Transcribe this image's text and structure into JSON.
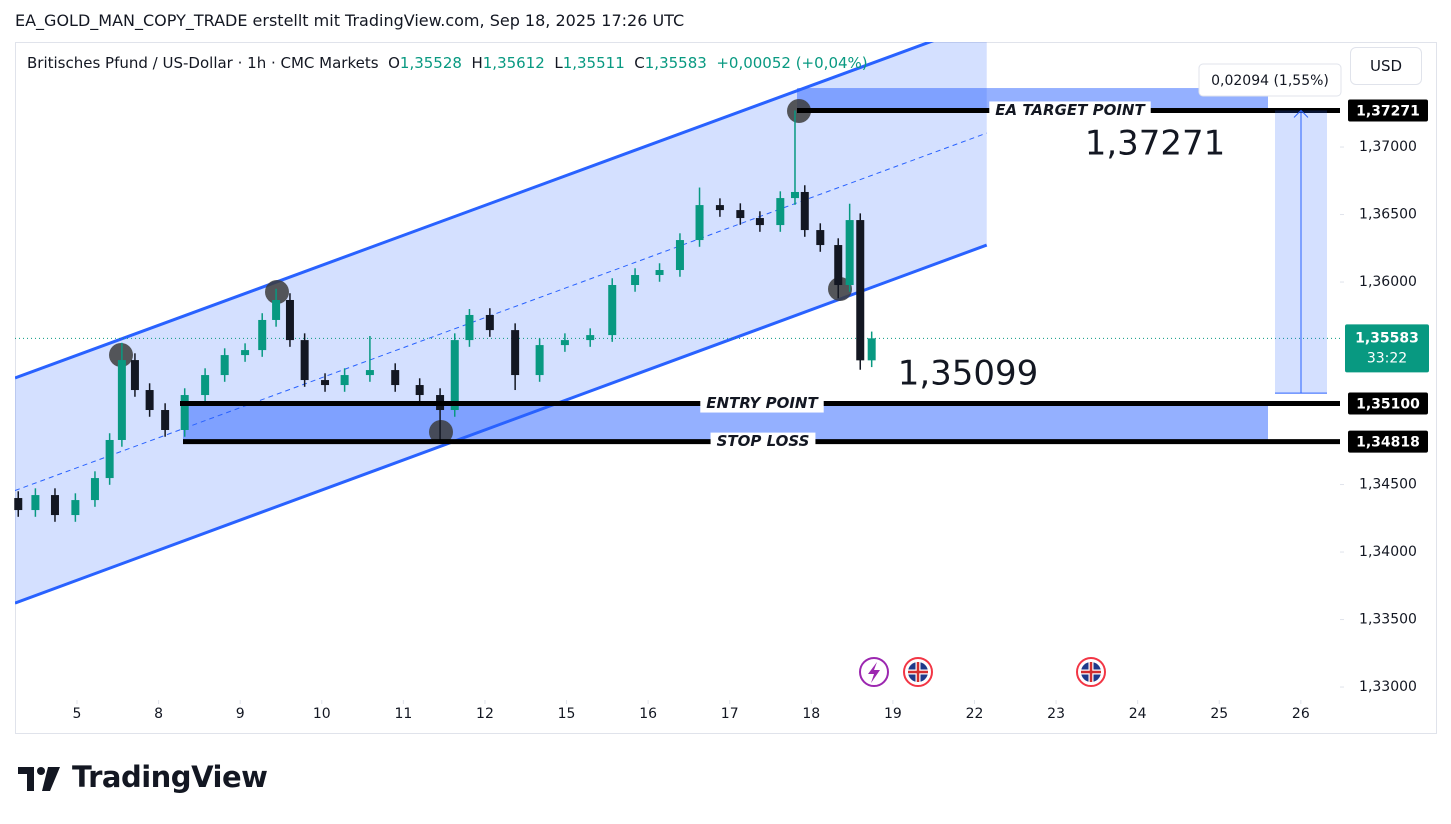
{
  "chart_data": {
    "type": "candlestick",
    "attribution": "EA_GOLD_MAN_COPY_TRADE erstellt mit TradingView.com, Sep 18, 2025 17:26 UTC",
    "legend": {
      "symbol": "Britisches Pfund / US-Dollar · 1h · CMC Markets",
      "o_label": "O",
      "o": "1,35528",
      "h_label": "H",
      "h": "1,35612",
      "l_label": "L",
      "l": "1,35511",
      "c_label": "C",
      "c": "1,35583",
      "change": "+0,00052 (+0,04%)"
    },
    "currency": "USD",
    "footer": "TradingView",
    "xlim": [
      -0.76,
      15.48
    ],
    "xticks": [
      {
        "value": 0,
        "label": "5"
      },
      {
        "value": 1,
        "label": "8"
      },
      {
        "value": 2,
        "label": "9"
      },
      {
        "value": 3,
        "label": "10"
      },
      {
        "value": 4,
        "label": "11"
      },
      {
        "value": 5,
        "label": "12"
      },
      {
        "value": 6,
        "label": "15"
      },
      {
        "value": 7,
        "label": "16"
      },
      {
        "value": 8,
        "label": "17"
      },
      {
        "value": 9,
        "label": "18"
      },
      {
        "value": 10,
        "label": "19"
      },
      {
        "value": 11,
        "label": "22"
      },
      {
        "value": 12,
        "label": "23"
      },
      {
        "value": 13,
        "label": "24"
      },
      {
        "value": 14,
        "label": "25"
      },
      {
        "value": 15,
        "label": "26"
      }
    ],
    "ylim": [
      1.32904,
      1.37778
    ],
    "yticks": [
      {
        "value": 1.37,
        "label": "1,37000"
      },
      {
        "value": 1.365,
        "label": "1,36500"
      },
      {
        "value": 1.36,
        "label": "1,36000"
      },
      {
        "value": 1.345,
        "label": "1,34500"
      },
      {
        "value": 1.34,
        "label": "1,34000"
      },
      {
        "value": 1.335,
        "label": "1,33500"
      },
      {
        "value": 1.33,
        "label": "1,33000"
      }
    ],
    "candles": {
      "up_color": "#089981",
      "down_color": "#131722",
      "x": [
        -0.72,
        -0.51,
        -0.27,
        -0.02,
        0.22,
        0.4,
        0.55,
        0.71,
        0.89,
        1.08,
        1.32,
        1.57,
        1.81,
        2.06,
        2.27,
        2.44,
        2.61,
        2.79,
        3.04,
        3.28,
        3.59,
        3.9,
        4.2,
        4.45,
        4.63,
        4.81,
        5.06,
        5.37,
        5.67,
        5.98,
        6.29,
        6.56,
        6.84,
        7.14,
        7.39,
        7.63,
        7.88,
        8.13,
        8.37,
        8.62,
        8.8,
        8.92,
        9.11,
        9.33,
        9.47,
        9.6,
        9.74
      ],
      "open": [
        1.344,
        1.34311,
        1.34422,
        1.34274,
        1.34385,
        1.34548,
        1.3483,
        1.35422,
        1.352,
        1.35052,
        1.34904,
        1.35163,
        1.35311,
        1.35459,
        1.35496,
        1.35719,
        1.35867,
        1.3557,
        1.35274,
        1.35237,
        1.35311,
        1.35348,
        1.35237,
        1.35163,
        1.35052,
        1.3557,
        1.35756,
        1.35644,
        1.35311,
        1.35533,
        1.3557,
        1.35607,
        1.35978,
        1.36052,
        1.36089,
        1.36311,
        1.3657,
        1.36533,
        1.36474,
        1.36422,
        1.36622,
        1.36667,
        1.36385,
        1.36274,
        1.35978,
        1.36459,
        1.3542
      ],
      "high": [
        1.3445,
        1.34472,
        1.34472,
        1.34435,
        1.34598,
        1.3488,
        1.3555,
        1.35472,
        1.3525,
        1.35102,
        1.35213,
        1.35361,
        1.35509,
        1.35546,
        1.35769,
        1.3595,
        1.35917,
        1.3562,
        1.35324,
        1.35361,
        1.356,
        1.35398,
        1.35287,
        1.35213,
        1.3562,
        1.358,
        1.35806,
        1.35694,
        1.35583,
        1.3562,
        1.35657,
        1.36028,
        1.36102,
        1.36139,
        1.36361,
        1.367,
        1.3662,
        1.36583,
        1.36524,
        1.36672,
        1.37271,
        1.36717,
        1.36435,
        1.36324,
        1.3658,
        1.36509,
        1.35633
      ],
      "low": [
        1.34261,
        1.34261,
        1.34224,
        1.34224,
        1.34335,
        1.34498,
        1.3478,
        1.3515,
        1.35002,
        1.34854,
        1.34854,
        1.35113,
        1.35261,
        1.35409,
        1.35446,
        1.35669,
        1.3552,
        1.35224,
        1.35187,
        1.35187,
        1.35261,
        1.35187,
        1.35113,
        1.3483,
        1.35002,
        1.3552,
        1.35594,
        1.352,
        1.35261,
        1.35483,
        1.3552,
        1.35557,
        1.35928,
        1.36002,
        1.36039,
        1.36261,
        1.36483,
        1.36424,
        1.36372,
        1.36372,
        1.36572,
        1.36335,
        1.36224,
        1.3588,
        1.35928,
        1.3535,
        1.3537
      ],
      "close": [
        1.34311,
        1.34422,
        1.34274,
        1.34385,
        1.34548,
        1.3483,
        1.35422,
        1.352,
        1.35052,
        1.34904,
        1.35163,
        1.35311,
        1.35459,
        1.35496,
        1.35719,
        1.35867,
        1.3557,
        1.35274,
        1.35237,
        1.35311,
        1.35348,
        1.35237,
        1.35163,
        1.35052,
        1.3557,
        1.35756,
        1.35644,
        1.35311,
        1.35533,
        1.3557,
        1.35607,
        1.35978,
        1.36052,
        1.36089,
        1.36311,
        1.3657,
        1.36533,
        1.36474,
        1.36422,
        1.36622,
        1.36667,
        1.36385,
        1.36274,
        1.35978,
        1.36459,
        1.3542,
        1.35583
      ]
    },
    "channel": {
      "color": "#2962ff",
      "upper": [
        [
          -0.76,
          1.35289
        ],
        [
          11.15,
          1.37933
        ]
      ],
      "lower": [
        [
          -0.76,
          1.33622
        ],
        [
          11.15,
          1.36274
        ]
      ]
    },
    "zones": [
      {
        "top": 1.37437,
        "bottom": 1.37271
      },
      {
        "top": 1.351,
        "bottom": 1.34818
      }
    ],
    "levels": [
      {
        "name": "EA TARGET POINT",
        "value": 1.37271,
        "label": "1,37271"
      },
      {
        "name": "ENTRY POINT",
        "value": 1.351,
        "label": "1,35100"
      },
      {
        "name": "STOP LOSS",
        "value": 1.34818,
        "label": "1,34818"
      }
    ],
    "current_price": {
      "value": 1.35583,
      "label": "1,35583",
      "countdown": "33:22",
      "color": "#089981"
    },
    "measure": {
      "from": 1.35177,
      "to": 1.37271,
      "label": "0,02094 (1,55%)"
    },
    "annotations": [
      "1,37271",
      "1,35099"
    ]
  }
}
